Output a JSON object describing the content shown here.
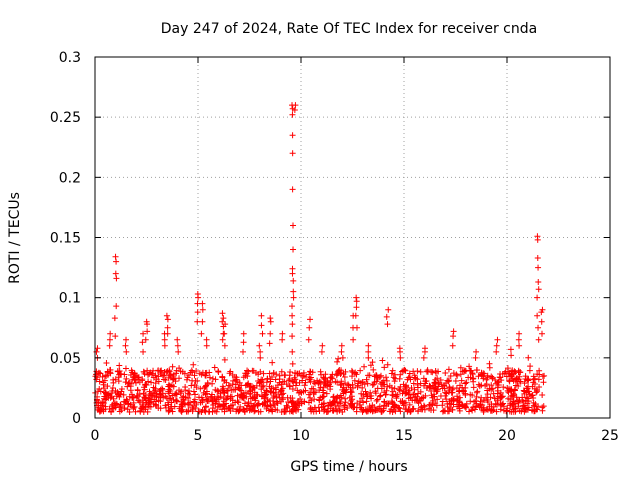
{
  "chart_data": {
    "type": "scatter",
    "title": "Day 247 of 2024, Rate Of TEC Index for receiver cnda",
    "xlabel": "GPS time / hours",
    "ylabel": "ROTI / TECUs",
    "xlim": [
      0,
      25
    ],
    "ylim": [
      0,
      0.3
    ],
    "xticks": [
      0,
      5,
      10,
      15,
      20,
      25
    ],
    "xtick_labels": [
      "0",
      "5",
      "10",
      "15",
      "20",
      "25"
    ],
    "yticks": [
      0,
      0.05,
      0.1,
      0.15,
      0.2,
      0.25,
      0.3
    ],
    "ytick_labels": [
      "0",
      "0.05",
      "0.1",
      "0.15",
      "0.2",
      "0.25",
      "0.3"
    ],
    "grid": true,
    "marker": "+",
    "series_color": "#ff0000",
    "data_extent_hours": [
      0,
      21.8
    ],
    "baseline_band": [
      0.005,
      0.04
    ],
    "spikes": [
      {
        "x": 0.1,
        "values": [
          0.05,
          0.055,
          0.058
        ]
      },
      {
        "x": 0.7,
        "values": [
          0.06,
          0.065,
          0.07
        ]
      },
      {
        "x": 1.0,
        "values": [
          0.068,
          0.083,
          0.093,
          0.116,
          0.12,
          0.13,
          0.134
        ]
      },
      {
        "x": 1.5,
        "values": [
          0.055,
          0.06,
          0.065
        ]
      },
      {
        "x": 2.3,
        "values": [
          0.055,
          0.063,
          0.07
        ]
      },
      {
        "x": 2.5,
        "values": [
          0.065,
          0.072,
          0.078,
          0.08
        ]
      },
      {
        "x": 3.4,
        "values": [
          0.06,
          0.065,
          0.07
        ]
      },
      {
        "x": 3.5,
        "values": [
          0.07,
          0.075,
          0.082,
          0.085
        ]
      },
      {
        "x": 4.0,
        "values": [
          0.055,
          0.06,
          0.065
        ]
      },
      {
        "x": 5.0,
        "values": [
          0.08,
          0.088,
          0.095,
          0.1,
          0.103
        ]
      },
      {
        "x": 5.2,
        "values": [
          0.07,
          0.08,
          0.09,
          0.095
        ]
      },
      {
        "x": 5.4,
        "values": [
          0.06,
          0.065
        ]
      },
      {
        "x": 6.2,
        "values": [
          0.065,
          0.07,
          0.076,
          0.08,
          0.083,
          0.087
        ]
      },
      {
        "x": 6.3,
        "values": [
          0.06,
          0.07,
          0.078
        ]
      },
      {
        "x": 7.2,
        "values": [
          0.055,
          0.063,
          0.07
        ]
      },
      {
        "x": 8.0,
        "values": [
          0.05,
          0.055,
          0.06
        ]
      },
      {
        "x": 8.1,
        "values": [
          0.07,
          0.077,
          0.085
        ]
      },
      {
        "x": 8.5,
        "values": [
          0.062,
          0.07,
          0.08,
          0.083
        ]
      },
      {
        "x": 9.1,
        "values": [
          0.065,
          0.07
        ]
      },
      {
        "x": 9.6,
        "values": [
          0.045,
          0.055,
          0.068,
          0.078,
          0.085,
          0.093,
          0.1,
          0.105,
          0.114,
          0.12,
          0.124,
          0.14,
          0.16,
          0.19,
          0.22,
          0.235,
          0.252,
          0.257,
          0.26
        ]
      },
      {
        "x": 9.7,
        "values": [
          0.256,
          0.26
        ]
      },
      {
        "x": 10.4,
        "values": [
          0.065,
          0.075,
          0.082
        ]
      },
      {
        "x": 11.0,
        "values": [
          0.055,
          0.06
        ]
      },
      {
        "x": 12.0,
        "values": [
          0.05,
          0.055,
          0.06
        ]
      },
      {
        "x": 12.5,
        "values": [
          0.065,
          0.075,
          0.085
        ]
      },
      {
        "x": 12.7,
        "values": [
          0.075,
          0.085,
          0.092,
          0.097,
          0.1
        ]
      },
      {
        "x": 13.3,
        "values": [
          0.05,
          0.055,
          0.06
        ]
      },
      {
        "x": 14.2,
        "values": [
          0.078,
          0.084,
          0.09
        ]
      },
      {
        "x": 14.8,
        "values": [
          0.05,
          0.055,
          0.058
        ]
      },
      {
        "x": 16.0,
        "values": [
          0.05,
          0.055,
          0.058
        ]
      },
      {
        "x": 17.4,
        "values": [
          0.06,
          0.068,
          0.072
        ]
      },
      {
        "x": 18.5,
        "values": [
          0.05,
          0.055
        ]
      },
      {
        "x": 19.5,
        "values": [
          0.055,
          0.06,
          0.065
        ]
      },
      {
        "x": 20.2,
        "values": [
          0.052,
          0.057
        ]
      },
      {
        "x": 20.6,
        "values": [
          0.06,
          0.065,
          0.07
        ]
      },
      {
        "x": 21.5,
        "values": [
          0.065,
          0.075,
          0.085,
          0.1,
          0.107,
          0.113,
          0.125,
          0.133,
          0.148,
          0.151
        ]
      },
      {
        "x": 21.7,
        "values": [
          0.07,
          0.08,
          0.088,
          0.09
        ]
      }
    ]
  }
}
